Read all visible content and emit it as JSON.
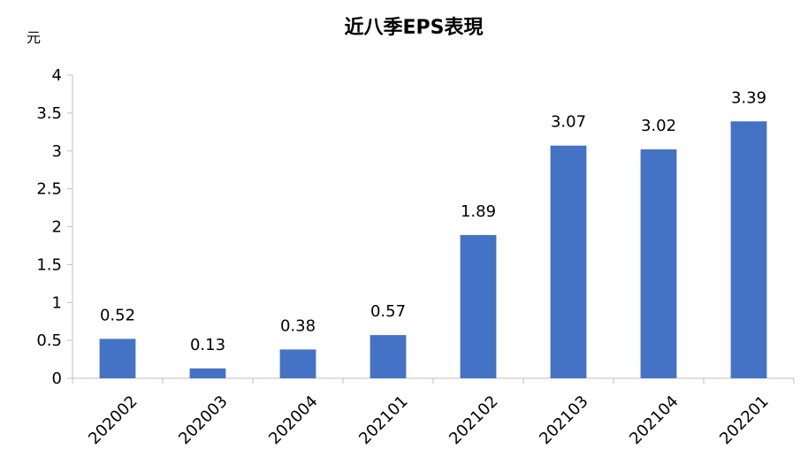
{
  "chart_data": {
    "type": "bar",
    "title": "近八季EPS表現",
    "ylabel": "元",
    "xlabel": "",
    "categories": [
      "202002",
      "202003",
      "202004",
      "202101",
      "202102",
      "202103",
      "202104",
      "202201"
    ],
    "values": [
      0.52,
      0.13,
      0.38,
      0.57,
      1.89,
      3.07,
      3.02,
      3.39
    ],
    "data_labels": [
      "0.52",
      "0.13",
      "0.38",
      "0.57",
      "1.89",
      "3.07",
      "3.02",
      "3.39"
    ],
    "ylim": [
      0,
      4
    ],
    "yticks": [
      "0",
      "0.5",
      "1",
      "1.5",
      "2",
      "2.5",
      "3",
      "3.5",
      "4"
    ],
    "grid": false,
    "legend": "none",
    "bar_color": "#4472c4"
  }
}
